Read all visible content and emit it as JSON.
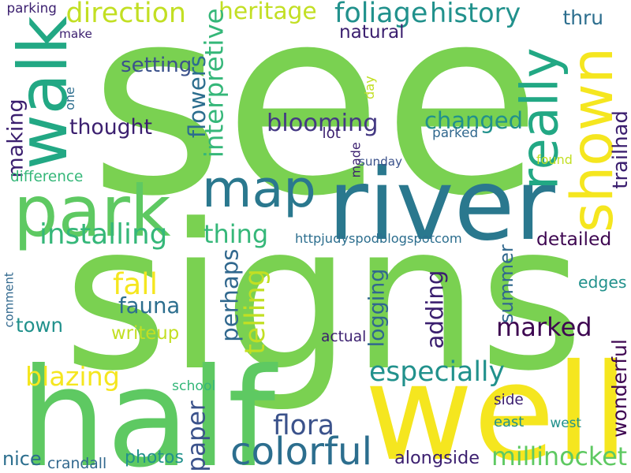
{
  "words": [
    {
      "text": "see",
      "color": "#7ad151"
    },
    {
      "text": "signs",
      "color": "#7ad151"
    },
    {
      "text": "half",
      "color": "#5ec962"
    },
    {
      "text": "well",
      "color": "#f5e61f"
    },
    {
      "text": "river",
      "color": "#2a788e"
    },
    {
      "text": "park",
      "color": "#5ec962"
    },
    {
      "text": "map",
      "color": "#2a788e"
    },
    {
      "text": "walk",
      "color": "#22a884"
    },
    {
      "text": "shown",
      "color": "#f5e61f"
    },
    {
      "text": "really",
      "color": "#22a884"
    },
    {
      "text": "colorful",
      "color": "#2c6e8e"
    },
    {
      "text": "blooming",
      "color": "#443983"
    },
    {
      "text": "changed",
      "color": "#21918c"
    },
    {
      "text": "especially",
      "color": "#21918c"
    },
    {
      "text": "millinocket",
      "color": "#5ec962"
    },
    {
      "text": "foliage",
      "color": "#21918c"
    },
    {
      "text": "history",
      "color": "#21918c"
    },
    {
      "text": "direction",
      "color": "#c2df23"
    },
    {
      "text": "heritage",
      "color": "#c2df23"
    },
    {
      "text": "installing",
      "color": "#35b779"
    },
    {
      "text": "thought",
      "color": "#3b1f6f"
    },
    {
      "text": "blazing",
      "color": "#f5e61f"
    },
    {
      "text": "adding",
      "color": "#3b1f6f"
    },
    {
      "text": "flowers",
      "color": "#2c6e8e"
    },
    {
      "text": "interpretive",
      "color": "#35b779"
    },
    {
      "text": "paper",
      "color": "#3b528b"
    },
    {
      "text": "flora",
      "color": "#3b528b"
    },
    {
      "text": "wonderful",
      "color": "#3e0751"
    },
    {
      "text": "trailhad",
      "color": "#3b1f6f"
    },
    {
      "text": "thing",
      "color": "#35b779"
    },
    {
      "text": "fall",
      "color": "#f5e61f"
    },
    {
      "text": "fauna",
      "color": "#2c6e8e"
    },
    {
      "text": "marked",
      "color": "#3e0751"
    },
    {
      "text": "summer",
      "color": "#31688e"
    },
    {
      "text": "logging",
      "color": "#31688e"
    },
    {
      "text": "telling",
      "color": "#c2df23"
    },
    {
      "text": "perhaps",
      "color": "#31688e"
    },
    {
      "text": "making",
      "color": "#3b1f6f"
    },
    {
      "text": "day",
      "color": "#c2df23"
    },
    {
      "text": "detailed",
      "color": "#3e0751"
    },
    {
      "text": "setting",
      "color": "#3b528b"
    },
    {
      "text": "natural",
      "color": "#3b1f6f"
    },
    {
      "text": "thru",
      "color": "#2c6e8e"
    },
    {
      "text": "writeup",
      "color": "#c2df23"
    },
    {
      "text": "town",
      "color": "#21918c"
    },
    {
      "text": "photos",
      "color": "#21918c"
    },
    {
      "text": "alongside",
      "color": "#3b1f6f"
    },
    {
      "text": "edges",
      "color": "#21918c"
    },
    {
      "text": "nice",
      "color": "#2c6e8e"
    },
    {
      "text": "httpjudyspodblogspotcom",
      "color": "#2c6e8e"
    },
    {
      "text": "parking",
      "color": "#3b1f6f"
    },
    {
      "text": "make",
      "color": "#3b1f6f"
    },
    {
      "text": "one",
      "color": "#2c6e8e"
    },
    {
      "text": "difference",
      "color": "#35b779"
    },
    {
      "text": "made",
      "color": "#3b1f6f"
    },
    {
      "text": "lot",
      "color": "#3b1f6f"
    },
    {
      "text": "sunday",
      "color": "#3b528b"
    },
    {
      "text": "parked",
      "color": "#31688e"
    },
    {
      "text": "found",
      "color": "#c2df23"
    },
    {
      "text": "comment",
      "color": "#31688e"
    },
    {
      "text": "actual",
      "color": "#3b1f6f"
    },
    {
      "text": "school",
      "color": "#35b779"
    },
    {
      "text": "side",
      "color": "#3b1f6f"
    },
    {
      "text": "east",
      "color": "#21918c"
    },
    {
      "text": "west",
      "color": "#21918c"
    },
    {
      "text": "crandall",
      "color": "#31688e"
    }
  ]
}
